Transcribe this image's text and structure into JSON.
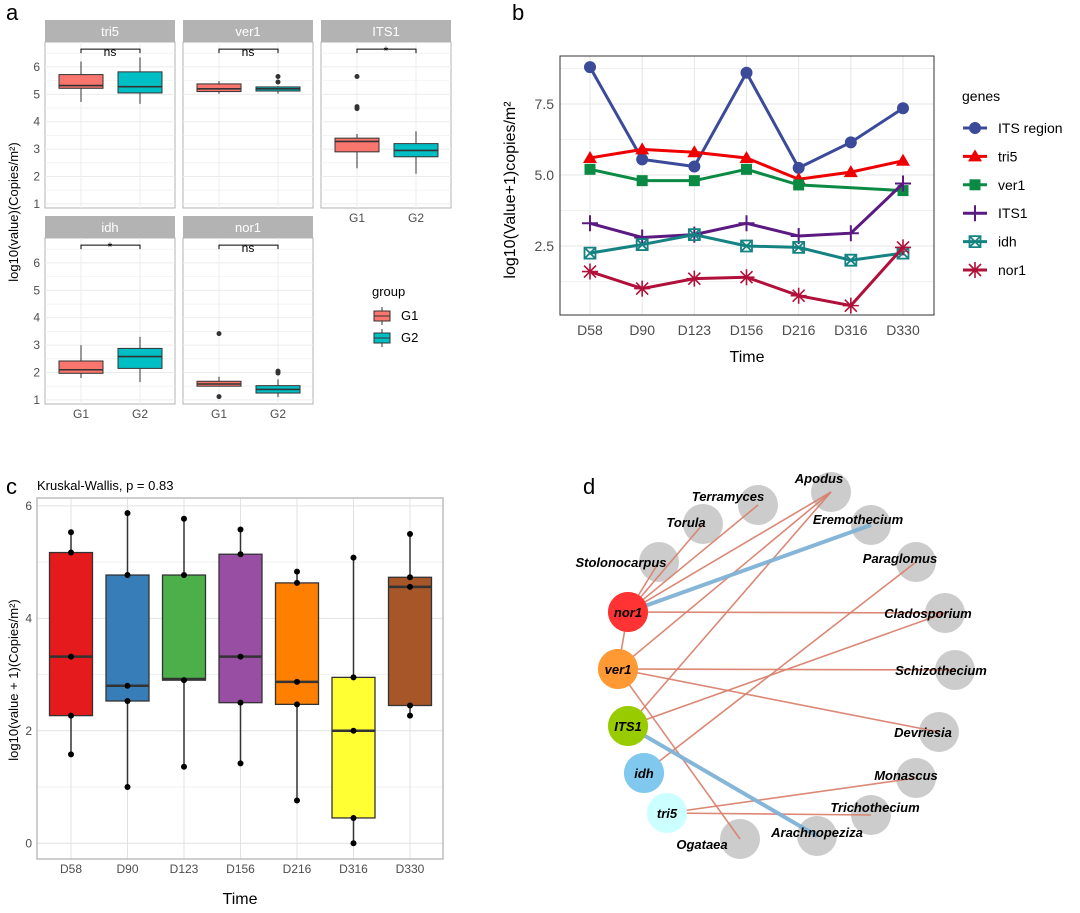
{
  "panel_labels": [
    "a",
    "b",
    "c",
    "d"
  ],
  "chart_data": [
    {
      "panel": "a",
      "type": "box",
      "ylabel": "log10(value)(Copies/m²)",
      "ylim": [
        0.85,
        6.91
      ],
      "yticks": [
        1,
        2,
        3,
        4,
        5,
        6
      ],
      "groups": [
        "G1",
        "G2"
      ],
      "group_colors": {
        "G1": "#f8766d",
        "G2": "#00bfc4"
      },
      "legend": {
        "title": "group",
        "entries": [
          "G1",
          "G2"
        ],
        "placement": "right"
      },
      "facets": [
        {
          "name": "tri5",
          "signif": "ns",
          "boxes": [
            {
              "group": "G1",
              "q1": 5.22,
              "median": 5.32,
              "q3": 5.72,
              "min": 4.72,
              "max": 6.2,
              "outliers": []
            },
            {
              "group": "G2",
              "q1": 5.05,
              "median": 5.28,
              "q3": 5.82,
              "min": 4.65,
              "max": 6.35,
              "outliers": []
            }
          ]
        },
        {
          "name": "ver1",
          "signif": "ns",
          "boxes": [
            {
              "group": "G1",
              "q1": 5.1,
              "median": 5.2,
              "q3": 5.38,
              "min": 5.02,
              "max": 5.48,
              "outliers": []
            },
            {
              "group": "G2",
              "q1": 5.12,
              "median": 5.2,
              "q3": 5.27,
              "min": 5.02,
              "max": 5.3,
              "outliers": [
                5.65,
                5.45
              ]
            }
          ]
        },
        {
          "name": "ITS1",
          "signif": "*",
          "boxes": [
            {
              "group": "G1",
              "q1": 2.9,
              "median": 3.28,
              "q3": 3.4,
              "min": 2.3,
              "max": 3.55,
              "outliers": [
                5.65,
                4.55,
                4.48
              ]
            },
            {
              "group": "G2",
              "q1": 2.72,
              "median": 2.95,
              "q3": 3.2,
              "min": 2.1,
              "max": 3.65,
              "outliers": []
            }
          ]
        },
        {
          "name": "idh",
          "signif": "*",
          "boxes": [
            {
              "group": "G1",
              "q1": 1.97,
              "median": 2.1,
              "q3": 2.42,
              "min": 1.8,
              "max": 3.0,
              "outliers": []
            },
            {
              "group": "G2",
              "q1": 2.15,
              "median": 2.58,
              "q3": 2.88,
              "min": 1.65,
              "max": 3.3,
              "outliers": []
            }
          ]
        },
        {
          "name": "nor1",
          "signif": "ns",
          "boxes": [
            {
              "group": "G1",
              "q1": 1.5,
              "median": 1.58,
              "q3": 1.68,
              "min": 1.5,
              "max": 1.85,
              "outliers": [
                3.42,
                1.12
              ]
            },
            {
              "group": "G2",
              "q1": 1.25,
              "median": 1.38,
              "q3": 1.52,
              "min": 1.1,
              "max": 1.75,
              "outliers": [
                2.05,
                1.98
              ]
            }
          ]
        }
      ]
    },
    {
      "panel": "b",
      "type": "line",
      "xlabel": "Time",
      "ylabel": "log10(Value+1)copies/m²",
      "categories": [
        "D58",
        "D90",
        "D123",
        "D156",
        "D216",
        "D316",
        "D330"
      ],
      "ylim": [
        0.07,
        9.19
      ],
      "yticks": [
        2.5,
        5.0,
        7.5
      ],
      "ytick_labels": [
        "2.5",
        "5.0",
        "7.5"
      ],
      "legend": {
        "title": "genes",
        "placement": "right"
      },
      "series": [
        {
          "name": "ITS region",
          "color": "#3c4a9a",
          "marker": "circle",
          "values": [
            8.8,
            5.55,
            5.3,
            8.6,
            5.25,
            6.15,
            7.35
          ]
        },
        {
          "name": "tri5",
          "color": "#ee0000",
          "marker": "triangle",
          "values": [
            5.6,
            5.9,
            5.8,
            5.6,
            4.85,
            5.1,
            5.5
          ]
        },
        {
          "name": "ver1",
          "color": "#0b8a44",
          "marker": "square",
          "values": [
            5.2,
            4.8,
            4.8,
            5.2,
            4.65,
            null,
            4.45
          ]
        },
        {
          "name": "ITS1",
          "color": "#5b1a82",
          "marker": "plus",
          "values": [
            3.3,
            2.8,
            2.9,
            3.3,
            2.85,
            2.95,
            4.7
          ]
        },
        {
          "name": "idh",
          "color": "#168383",
          "marker": "square-cross",
          "values": [
            2.25,
            2.55,
            2.9,
            2.5,
            2.45,
            2.0,
            2.25
          ]
        },
        {
          "name": "nor1",
          "color": "#b0103a",
          "marker": "asterisk",
          "values": [
            1.6,
            1.0,
            1.35,
            1.4,
            0.75,
            0.4,
            2.45
          ]
        }
      ]
    },
    {
      "panel": "c",
      "type": "box",
      "title": "Kruskal-Wallis, p = 0.83",
      "xlabel": "Time",
      "ylabel": "log10(value + 1)(Copies/m²)",
      "ylim": [
        -0.28,
        6.14
      ],
      "yticks": [
        0,
        2,
        4,
        6
      ],
      "boxes": [
        {
          "category": "D58",
          "color": "#e41a1c",
          "q1": 2.27,
          "median": 3.32,
          "q3": 5.17,
          "min": 1.58,
          "max": 5.53,
          "points": [
            5.53,
            5.17,
            3.32,
            2.27,
            1.58
          ]
        },
        {
          "category": "D90",
          "color": "#377eb8",
          "q1": 2.53,
          "median": 2.8,
          "q3": 4.77,
          "min": 1.0,
          "max": 5.87,
          "points": [
            5.87,
            4.77,
            2.8,
            2.53,
            1.0
          ]
        },
        {
          "category": "D123",
          "color": "#4daf4a",
          "q1": 2.9,
          "median": 2.92,
          "q3": 4.77,
          "min": 1.36,
          "max": 5.77,
          "points": [
            5.77,
            4.77,
            2.9,
            1.36
          ]
        },
        {
          "category": "D156",
          "color": "#984ea3",
          "q1": 2.5,
          "median": 3.32,
          "q3": 5.14,
          "min": 1.42,
          "max": 5.58,
          "points": [
            5.58,
            5.14,
            3.32,
            2.5,
            1.42
          ]
        },
        {
          "category": "D216",
          "color": "#ff7f00",
          "q1": 2.47,
          "median": 2.87,
          "q3": 4.63,
          "min": 0.76,
          "max": 4.83,
          "points": [
            4.83,
            4.63,
            2.87,
            2.47,
            0.76
          ]
        },
        {
          "category": "D316",
          "color": "#ffff33",
          "q1": 0.45,
          "median": 2.0,
          "q3": 2.95,
          "min": 0.0,
          "max": 5.08,
          "points": [
            5.08,
            2.95,
            2.0,
            0.45,
            0.0
          ]
        },
        {
          "category": "D330",
          "color": "#a65628",
          "q1": 2.45,
          "median": 4.56,
          "q3": 4.73,
          "min": 2.27,
          "max": 5.5,
          "points": [
            5.5,
            4.73,
            4.56,
            2.45,
            2.27
          ]
        }
      ]
    },
    {
      "panel": "d",
      "type": "network",
      "layout": "circle",
      "nodes": [
        {
          "id": "nor1",
          "color": "#ff3333"
        },
        {
          "id": "ver1",
          "color": "#ff9933"
        },
        {
          "id": "ITS1",
          "color": "#99cc00"
        },
        {
          "id": "idh",
          "color": "#80c8ee"
        },
        {
          "id": "tri5",
          "color": "#ccffff"
        },
        {
          "id": "Ogataea",
          "color": "#cccccc"
        },
        {
          "id": "Arachnopeziza",
          "color": "#cccccc"
        },
        {
          "id": "Trichothecium",
          "color": "#cccccc"
        },
        {
          "id": "Monascus",
          "color": "#cccccc"
        },
        {
          "id": "Devriesia",
          "color": "#cccccc"
        },
        {
          "id": "Schizothecium",
          "color": "#cccccc"
        },
        {
          "id": "Cladosporium",
          "color": "#cccccc"
        },
        {
          "id": "Paraglomus",
          "color": "#cccccc"
        },
        {
          "id": "Eremothecium",
          "color": "#cccccc"
        },
        {
          "id": "Apodus",
          "color": "#cccccc"
        },
        {
          "id": "Terramyces",
          "color": "#cccccc"
        },
        {
          "id": "Torula",
          "color": "#cccccc"
        },
        {
          "id": "Stolonocarpus",
          "color": "#cccccc"
        }
      ],
      "edge_colors": {
        "positive": "#d9826f",
        "negative": "#7fb2d5"
      },
      "edges": [
        {
          "source": "nor1",
          "target": "Stolonocarpus",
          "type": "positive"
        },
        {
          "source": "nor1",
          "target": "Torula",
          "type": "positive"
        },
        {
          "source": "nor1",
          "target": "Terramyces",
          "type": "positive"
        },
        {
          "source": "nor1",
          "target": "Apodus",
          "type": "positive"
        },
        {
          "source": "nor1",
          "target": "Cladosporium",
          "type": "positive"
        },
        {
          "source": "nor1",
          "target": "ver1",
          "type": "positive"
        },
        {
          "source": "ver1",
          "target": "Apodus",
          "type": "positive"
        },
        {
          "source": "ver1",
          "target": "Schizothecium",
          "type": "positive"
        },
        {
          "source": "ver1",
          "target": "Devriesia",
          "type": "positive"
        },
        {
          "source": "ver1",
          "target": "Ogataea",
          "type": "positive"
        },
        {
          "source": "ITS1",
          "target": "Apodus",
          "type": "positive"
        },
        {
          "source": "ITS1",
          "target": "Cladosporium",
          "type": "positive"
        },
        {
          "source": "idh",
          "target": "Paraglomus",
          "type": "positive"
        },
        {
          "source": "tri5",
          "target": "Monascus",
          "type": "positive"
        },
        {
          "source": "tri5",
          "target": "Trichothecium",
          "type": "positive"
        },
        {
          "source": "nor1",
          "target": "Eremothecium",
          "type": "negative"
        },
        {
          "source": "ITS1",
          "target": "Arachnopeziza",
          "type": "negative"
        }
      ]
    }
  ]
}
